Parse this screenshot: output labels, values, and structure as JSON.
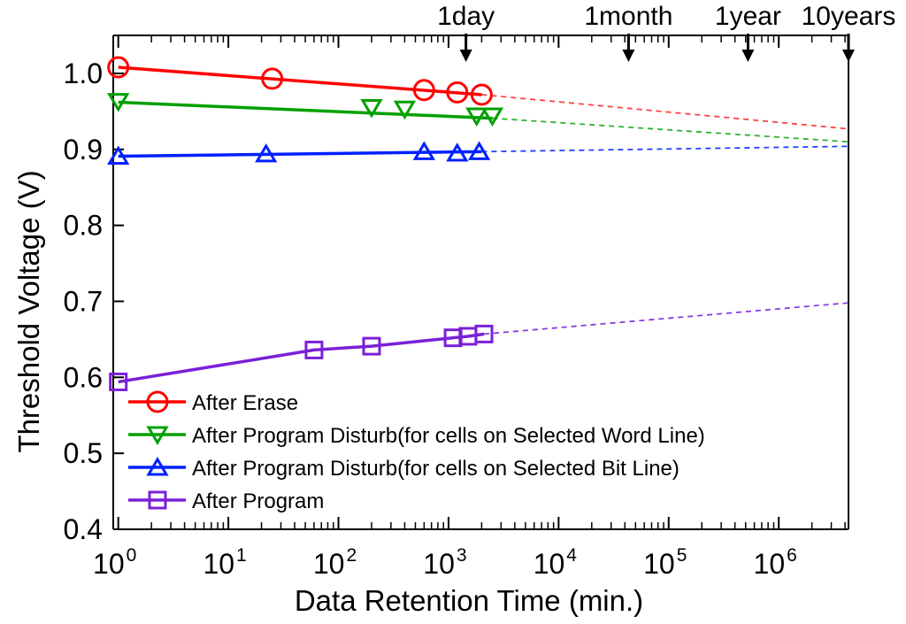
{
  "chart_data": {
    "type": "line",
    "x_scale": "log",
    "xlim": [
      0.9,
      4300000
    ],
    "ylim": [
      0.4,
      1.05
    ],
    "xlabel": "Data Retention Time (min.)",
    "ylabel": "Threshold Voltage (V)",
    "y_ticks": [
      {
        "value": 0.4,
        "label": "0.4"
      },
      {
        "value": 0.5,
        "label": "0.5"
      },
      {
        "value": 0.6,
        "label": "0.6"
      },
      {
        "value": 0.7,
        "label": "0.7"
      },
      {
        "value": 0.8,
        "label": "0.8"
      },
      {
        "value": 0.9,
        "label": "0.9"
      },
      {
        "value": 1.0,
        "label": "1.0"
      }
    ],
    "x_ticks": [
      {
        "value": 1,
        "base": "10",
        "exp": "0"
      },
      {
        "value": 10,
        "base": "10",
        "exp": "1"
      },
      {
        "value": 100,
        "base": "10",
        "exp": "2"
      },
      {
        "value": 1000,
        "base": "10",
        "exp": "3"
      },
      {
        "value": 10000,
        "base": "10",
        "exp": "4"
      },
      {
        "value": 100000,
        "base": "10",
        "exp": "5"
      },
      {
        "value": 1000000,
        "base": "10",
        "exp": "6"
      }
    ],
    "annotations": [
      {
        "label": "1day",
        "x": 1440
      },
      {
        "label": "1month",
        "x": 43200
      },
      {
        "label": "1year",
        "x": 525600
      },
      {
        "label": "10years",
        "x": 4300000
      }
    ],
    "series": [
      {
        "name": "After Erase",
        "marker": "circle",
        "color": "#ff0000",
        "dash_color": "#ff4040",
        "x": [
          1,
          25,
          600,
          1200,
          2000
        ],
        "y": [
          1.008,
          0.993,
          0.978,
          0.975,
          0.972
        ],
        "fit": {
          "x": [
            1,
            2000
          ],
          "y": [
            1.008,
            0.972
          ]
        },
        "extrapolation": {
          "x": [
            2000,
            4300000
          ],
          "y": [
            0.972,
            0.927
          ]
        }
      },
      {
        "name": "After Program Disturb(for cells on Selected Word Line)",
        "marker": "triangle-down",
        "color": "#00a000",
        "dash_color": "#30b030",
        "x": [
          1,
          200,
          400,
          1800,
          2500
        ],
        "y": [
          0.963,
          0.955,
          0.953,
          0.944,
          0.944
        ],
        "fit": {
          "x": [
            1,
            2500
          ],
          "y": [
            0.962,
            0.941
          ]
        },
        "extrapolation": {
          "x": [
            2500,
            4300000
          ],
          "y": [
            0.941,
            0.91
          ]
        }
      },
      {
        "name": "After Program Disturb(for cells on Selected Bit Line)",
        "marker": "triangle-up",
        "color": "#0020ff",
        "dash_color": "#2040ff",
        "x": [
          1,
          22,
          600,
          1200,
          1900
        ],
        "y": [
          0.891,
          0.894,
          0.897,
          0.895,
          0.897
        ],
        "fit": {
          "x": [
            1,
            2000
          ],
          "y": [
            0.891,
            0.897
          ]
        },
        "extrapolation": {
          "x": [
            2000,
            4300000
          ],
          "y": [
            0.897,
            0.904
          ]
        }
      },
      {
        "name": "After Program",
        "marker": "square",
        "color": "#7a20d8",
        "dash_color": "#8a3ae0",
        "x": [
          1,
          60,
          200,
          1100,
          1500,
          2100
        ],
        "y": [
          0.594,
          0.636,
          0.641,
          0.652,
          0.654,
          0.657
        ],
        "fit": {
          "x": [
            1,
            60,
            200,
            1100,
            1500,
            2100
          ],
          "y": [
            0.594,
            0.636,
            0.641,
            0.652,
            0.654,
            0.657
          ]
        },
        "extrapolation": {
          "x": [
            2100,
            4300000
          ],
          "y": [
            0.657,
            0.698
          ]
        }
      }
    ]
  }
}
